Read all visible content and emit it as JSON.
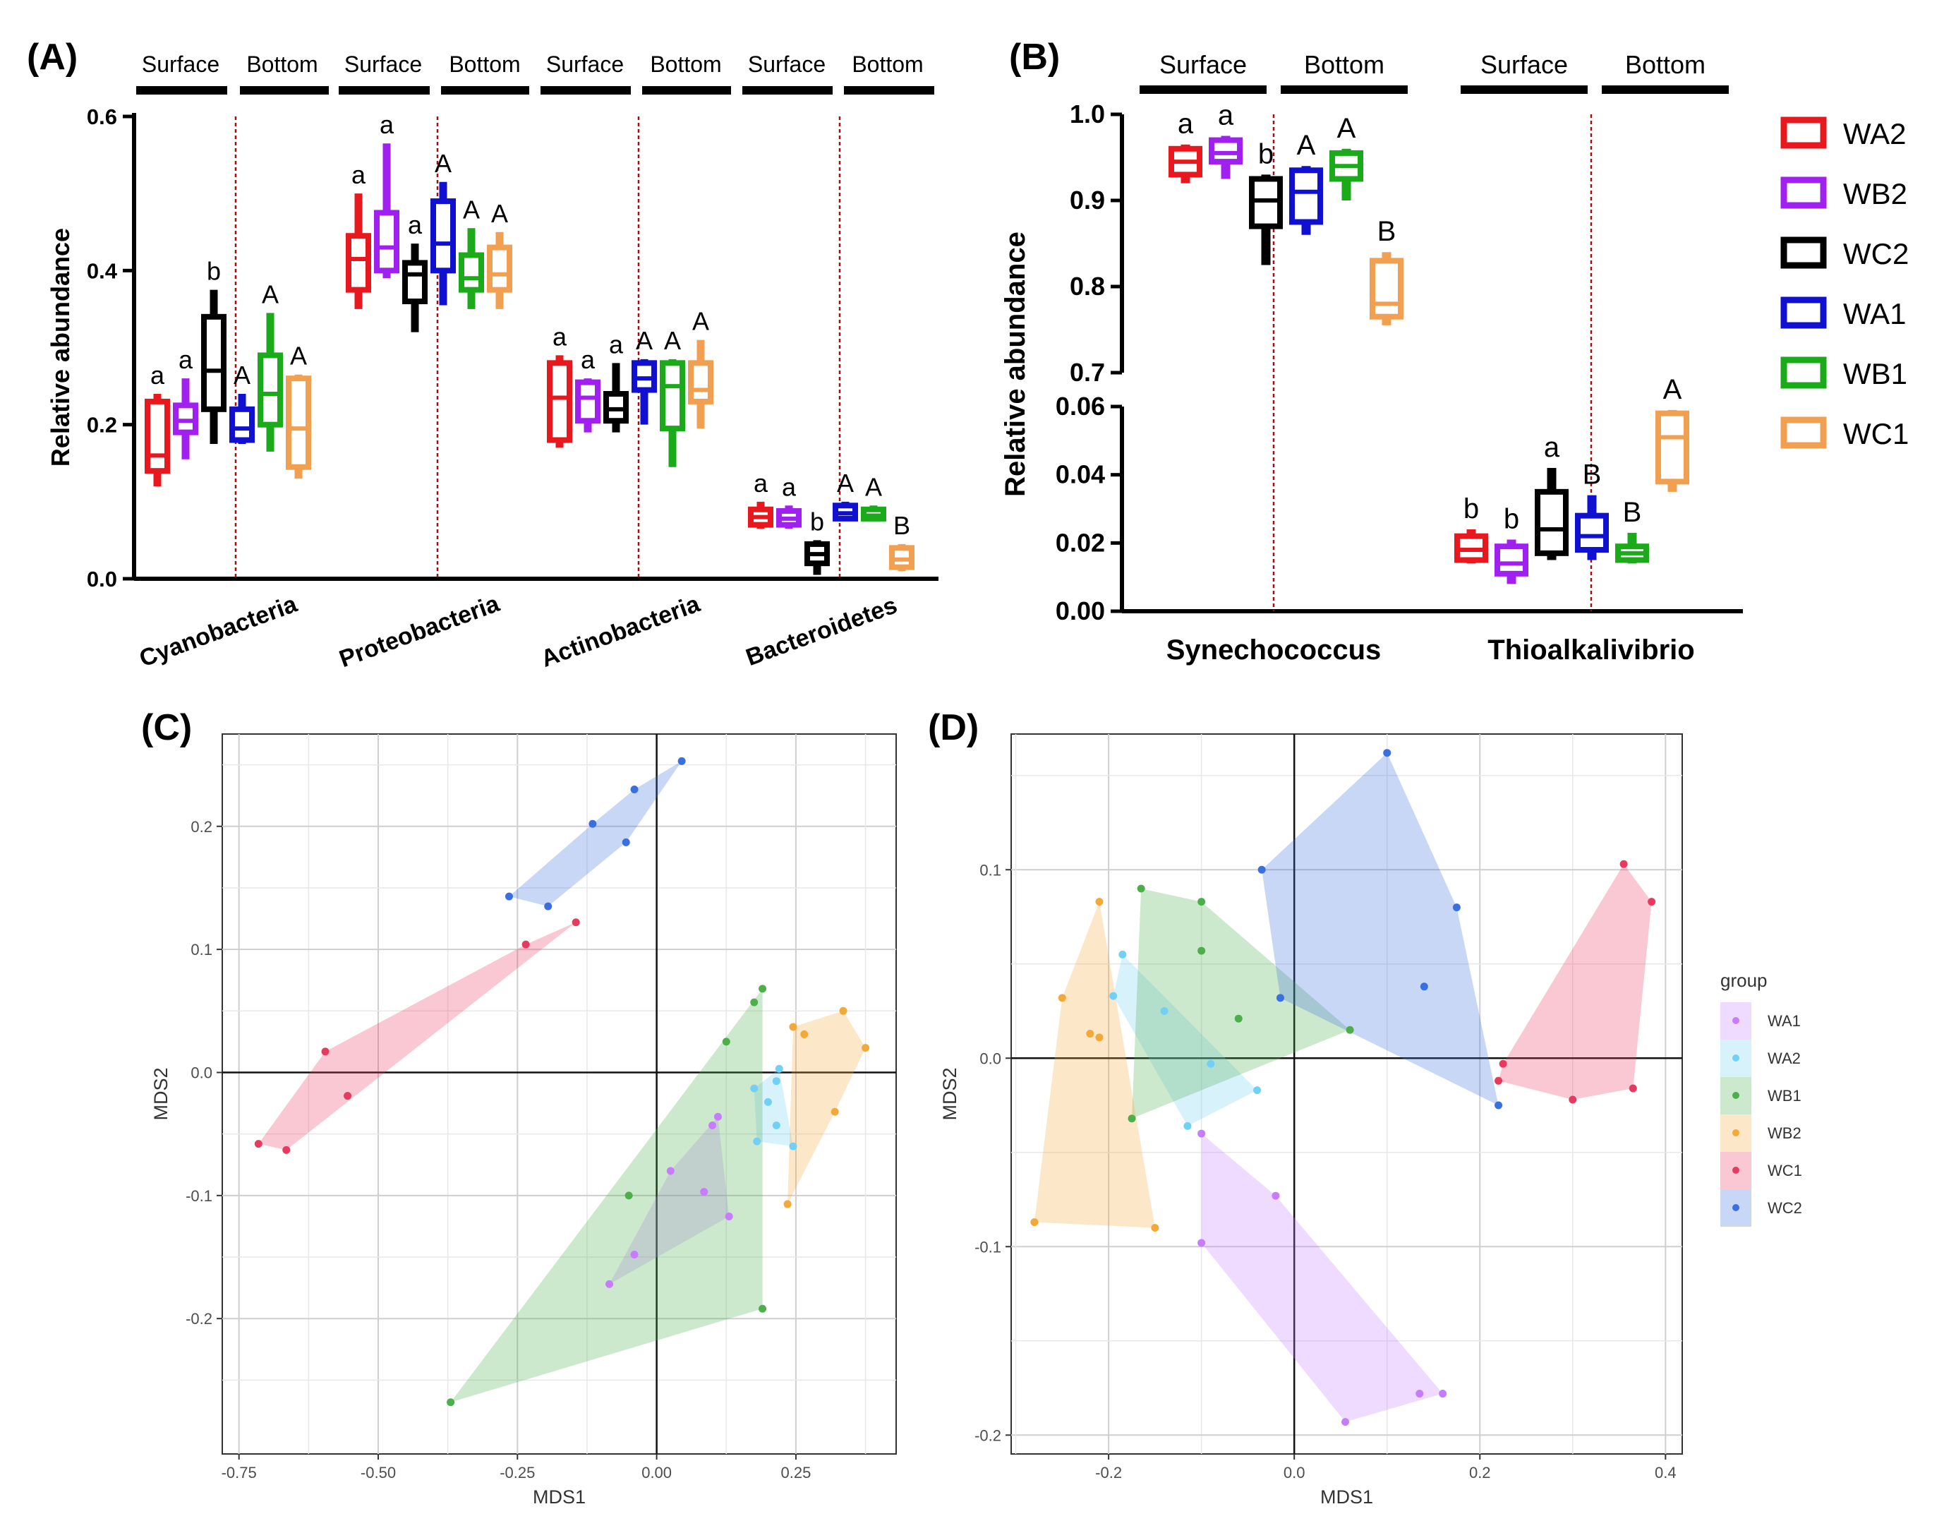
{
  "panel_labels": [
    "(A)",
    "(B)",
    "(C)",
    "(D)"
  ],
  "colors": {
    "WA2": "#e8191e",
    "WB2": "#a020f0",
    "WC2": "#000000",
    "WA1": "#1010d0",
    "WB1": "#1aaa1a",
    "WC1": "#f0a050",
    "ord_WA1": "#c77cff",
    "ord_WA2": "#72d0f6",
    "ord_WB1": "#4daf4a",
    "ord_WB2": "#f3a93a",
    "ord_WC1": "#e8395f",
    "ord_WC2": "#3a6fe0"
  },
  "chart_data": [
    {
      "id": "A",
      "type": "box",
      "title": "(A)",
      "ylabel": "Relative abundance",
      "ylim": [
        0,
        0.6
      ],
      "yticks": [
        "0.0",
        "0.2",
        "0.4",
        "0.6"
      ],
      "series_order": [
        "WA2",
        "WB2",
        "WC2",
        "WA1",
        "WB1",
        "WC1"
      ],
      "group_headers": [
        "Surface",
        "Bottom",
        "Surface",
        "Bottom",
        "Surface",
        "Bottom",
        "Surface",
        "Bottom"
      ],
      "categories": [
        {
          "name": "Cyanobacteria",
          "boxes": [
            {
              "s": "WA2",
              "min": 0.12,
              "q1": 0.14,
              "med": 0.16,
              "q3": 0.23,
              "max": 0.24,
              "label": "a"
            },
            {
              "s": "WB2",
              "min": 0.155,
              "q1": 0.19,
              "med": 0.205,
              "q3": 0.225,
              "max": 0.26,
              "label": "a"
            },
            {
              "s": "WC2",
              "min": 0.175,
              "q1": 0.22,
              "med": 0.27,
              "q3": 0.34,
              "max": 0.375,
              "label": "b"
            },
            {
              "s": "WA1",
              "min": 0.175,
              "q1": 0.18,
              "med": 0.195,
              "q3": 0.22,
              "max": 0.24,
              "label": "A"
            },
            {
              "s": "WB1",
              "min": 0.165,
              "q1": 0.2,
              "med": 0.24,
              "q3": 0.29,
              "max": 0.345,
              "label": "A"
            },
            {
              "s": "WC1",
              "min": 0.13,
              "q1": 0.145,
              "med": 0.195,
              "q3": 0.26,
              "max": 0.265,
              "label": "A"
            }
          ]
        },
        {
          "name": "Proteobacteria",
          "boxes": [
            {
              "s": "WA2",
              "min": 0.35,
              "q1": 0.375,
              "med": 0.415,
              "q3": 0.445,
              "max": 0.5,
              "label": "a"
            },
            {
              "s": "WB2",
              "min": 0.39,
              "q1": 0.4,
              "med": 0.43,
              "q3": 0.475,
              "max": 0.565,
              "label": "a"
            },
            {
              "s": "WC2",
              "min": 0.32,
              "q1": 0.36,
              "med": 0.395,
              "q3": 0.41,
              "max": 0.435,
              "label": "a"
            },
            {
              "s": "WA1",
              "min": 0.355,
              "q1": 0.4,
              "med": 0.435,
              "q3": 0.49,
              "max": 0.515,
              "label": "A"
            },
            {
              "s": "WB1",
              "min": 0.35,
              "q1": 0.375,
              "med": 0.39,
              "q3": 0.42,
              "max": 0.455,
              "label": "A"
            },
            {
              "s": "WC1",
              "min": 0.35,
              "q1": 0.375,
              "med": 0.395,
              "q3": 0.43,
              "max": 0.45,
              "label": "A"
            }
          ]
        },
        {
          "name": "Actinobacteria",
          "boxes": [
            {
              "s": "WA2",
              "min": 0.17,
              "q1": 0.18,
              "med": 0.235,
              "q3": 0.28,
              "max": 0.29,
              "label": "a"
            },
            {
              "s": "WB2",
              "min": 0.19,
              "q1": 0.205,
              "med": 0.235,
              "q3": 0.255,
              "max": 0.26,
              "label": "a"
            },
            {
              "s": "WC2",
              "min": 0.19,
              "q1": 0.205,
              "med": 0.22,
              "q3": 0.24,
              "max": 0.28,
              "label": "a"
            },
            {
              "s": "WA1",
              "min": 0.2,
              "q1": 0.245,
              "med": 0.26,
              "q3": 0.28,
              "max": 0.285,
              "label": "A"
            },
            {
              "s": "WB1",
              "min": 0.145,
              "q1": 0.195,
              "med": 0.25,
              "q3": 0.28,
              "max": 0.285,
              "label": "A"
            },
            {
              "s": "WC1",
              "min": 0.195,
              "q1": 0.23,
              "med": 0.245,
              "q3": 0.28,
              "max": 0.31,
              "label": "A"
            }
          ]
        },
        {
          "name": "Bacteroidetes",
          "boxes": [
            {
              "s": "WA2",
              "min": 0.065,
              "q1": 0.07,
              "med": 0.08,
              "q3": 0.09,
              "max": 0.1,
              "label": "a"
            },
            {
              "s": "WB2",
              "min": 0.065,
              "q1": 0.07,
              "med": 0.078,
              "q3": 0.088,
              "max": 0.095,
              "label": "a"
            },
            {
              "s": "WC2",
              "min": 0.005,
              "q1": 0.02,
              "med": 0.032,
              "q3": 0.045,
              "max": 0.05,
              "label": "b"
            },
            {
              "s": "WA1",
              "min": 0.075,
              "q1": 0.078,
              "med": 0.085,
              "q3": 0.095,
              "max": 0.1,
              "label": "A"
            },
            {
              "s": "WB1",
              "min": 0.075,
              "q1": 0.078,
              "med": 0.082,
              "q3": 0.09,
              "max": 0.095,
              "label": "A"
            },
            {
              "s": "WC1",
              "min": 0.01,
              "q1": 0.015,
              "med": 0.025,
              "q3": 0.04,
              "max": 0.045,
              "label": "B"
            }
          ]
        }
      ]
    },
    {
      "id": "B",
      "type": "box",
      "title": "(B)",
      "ylabel": "Relative abundance",
      "upper_ylim": [
        0.7,
        1.0
      ],
      "upper_yticks": [
        "0.7",
        "0.8",
        "0.9",
        "1.0"
      ],
      "lower_ylim": [
        0,
        0.06
      ],
      "lower_yticks": [
        "0.00",
        "0.02",
        "0.04",
        "0.06"
      ],
      "legend": [
        "WA2",
        "WB2",
        "WC2",
        "WA1",
        "WB1",
        "WC1"
      ],
      "group_headers": [
        "Surface",
        "Bottom",
        "Surface",
        "Bottom"
      ],
      "categories": [
        {
          "name": "Synechococcus",
          "boxes": [
            {
              "s": "WA2",
              "min": 0.92,
              "q1": 0.93,
              "med": 0.945,
              "q3": 0.96,
              "max": 0.965,
              "label": "a"
            },
            {
              "s": "WB2",
              "min": 0.925,
              "q1": 0.945,
              "med": 0.955,
              "q3": 0.97,
              "max": 0.975,
              "label": "a"
            },
            {
              "s": "WC2",
              "min": 0.825,
              "q1": 0.87,
              "med": 0.9,
              "q3": 0.925,
              "max": 0.93,
              "label": "b"
            },
            {
              "s": "WA1",
              "min": 0.86,
              "q1": 0.875,
              "med": 0.91,
              "q3": 0.935,
              "max": 0.94,
              "label": "A"
            },
            {
              "s": "WB1",
              "min": 0.9,
              "q1": 0.925,
              "med": 0.94,
              "q3": 0.955,
              "max": 0.96,
              "label": "A"
            },
            {
              "s": "WC1",
              "min": 0.755,
              "q1": 0.765,
              "med": 0.78,
              "q3": 0.83,
              "max": 0.84,
              "label": "B"
            }
          ]
        },
        {
          "name": "Thioalkalivibrio",
          "boxes": [
            {
              "s": "WA2",
              "min": 0.014,
              "q1": 0.015,
              "med": 0.018,
              "q3": 0.022,
              "max": 0.024,
              "label": "b"
            },
            {
              "s": "WB2",
              "min": 0.008,
              "q1": 0.011,
              "med": 0.014,
              "q3": 0.019,
              "max": 0.021,
              "label": "b"
            },
            {
              "s": "WC2",
              "min": 0.015,
              "q1": 0.017,
              "med": 0.024,
              "q3": 0.035,
              "max": 0.042,
              "label": "a"
            },
            {
              "s": "WA1",
              "min": 0.015,
              "q1": 0.018,
              "med": 0.022,
              "q3": 0.028,
              "max": 0.034,
              "label": "B"
            },
            {
              "s": "WB1",
              "min": 0.014,
              "q1": 0.015,
              "med": 0.017,
              "q3": 0.019,
              "max": 0.023,
              "label": "B"
            },
            {
              "s": "WC1",
              "min": 0.035,
              "q1": 0.038,
              "med": 0.051,
              "q3": 0.058,
              "max": 0.059,
              "label": "A"
            }
          ]
        }
      ]
    },
    {
      "id": "C",
      "type": "scatter",
      "title": "(C)",
      "xlabel": "MDS1",
      "ylabel": "MDS2",
      "xlim": [
        -0.78,
        0.43
      ],
      "ylim": [
        -0.31,
        0.275
      ],
      "xticks": [
        -0.75,
        -0.5,
        -0.25,
        0.0,
        0.25
      ],
      "xtick_labels": [
        "-0.75",
        "-0.50",
        "-0.25",
        "0.00",
        "0.25"
      ],
      "yticks": [
        -0.2,
        -0.1,
        0.0,
        0.1,
        0.2
      ],
      "ytick_labels": [
        "-0.2",
        "-0.1",
        "0.0",
        "0.1",
        "0.2"
      ],
      "series": [
        {
          "name": "WA1",
          "points": [
            [
              -0.085,
              -0.172
            ],
            [
              -0.04,
              -0.148
            ],
            [
              0.025,
              -0.08
            ],
            [
              0.085,
              -0.097
            ],
            [
              0.13,
              -0.117
            ],
            [
              0.11,
              -0.036
            ],
            [
              0.1,
              -0.043
            ]
          ]
        },
        {
          "name": "WA2",
          "points": [
            [
              0.175,
              -0.013
            ],
            [
              0.2,
              -0.024
            ],
            [
              0.215,
              -0.007
            ],
            [
              0.22,
              0.003
            ],
            [
              0.215,
              -0.043
            ],
            [
              0.18,
              -0.056
            ],
            [
              0.245,
              -0.06
            ]
          ]
        },
        {
          "name": "WB1",
          "points": [
            [
              -0.37,
              -0.268
            ],
            [
              -0.05,
              -0.1
            ],
            [
              0.125,
              0.025
            ],
            [
              0.175,
              0.057
            ],
            [
              0.19,
              0.068
            ],
            [
              0.19,
              -0.192
            ]
          ]
        },
        {
          "name": "WB2",
          "points": [
            [
              0.245,
              0.037
            ],
            [
              0.265,
              0.031
            ],
            [
              0.335,
              0.05
            ],
            [
              0.375,
              0.02
            ],
            [
              0.32,
              -0.032
            ],
            [
              0.235,
              -0.107
            ]
          ]
        },
        {
          "name": "WC1",
          "points": [
            [
              -0.715,
              -0.058
            ],
            [
              -0.665,
              -0.063
            ],
            [
              -0.595,
              0.017
            ],
            [
              -0.555,
              -0.019
            ],
            [
              -0.235,
              0.104
            ],
            [
              -0.145,
              0.122
            ]
          ]
        },
        {
          "name": "WC2",
          "points": [
            [
              -0.265,
              0.143
            ],
            [
              -0.195,
              0.135
            ],
            [
              -0.115,
              0.202
            ],
            [
              -0.055,
              0.187
            ],
            [
              -0.04,
              0.23
            ],
            [
              0.045,
              0.253
            ]
          ]
        }
      ]
    },
    {
      "id": "D",
      "type": "scatter",
      "title": "(D)",
      "xlabel": "MDS1",
      "ylabel": "MDS2",
      "xlim": [
        -0.305,
        0.418
      ],
      "ylim": [
        -0.21,
        0.172
      ],
      "xticks": [
        -0.2,
        0.0,
        0.2,
        0.4
      ],
      "xtick_labels": [
        "-0.2",
        "0.0",
        "0.2",
        "0.4"
      ],
      "yticks": [
        -0.2,
        -0.1,
        0.0,
        0.1
      ],
      "ytick_labels": [
        "-0.2",
        "-0.1",
        "0.0",
        "0.1"
      ],
      "legend_title": "group",
      "legend": [
        "WA1",
        "WA2",
        "WB1",
        "WB2",
        "WC1",
        "WC2"
      ],
      "series": [
        {
          "name": "WA1",
          "points": [
            [
              -0.1,
              -0.04
            ],
            [
              -0.1,
              -0.098
            ],
            [
              -0.02,
              -0.073
            ],
            [
              0.055,
              -0.193
            ],
            [
              0.135,
              -0.178
            ],
            [
              0.16,
              -0.178
            ]
          ]
        },
        {
          "name": "WA2",
          "points": [
            [
              -0.185,
              0.055
            ],
            [
              -0.195,
              0.033
            ],
            [
              -0.14,
              0.025
            ],
            [
              -0.115,
              -0.036
            ],
            [
              -0.04,
              -0.017
            ],
            [
              -0.09,
              -0.003
            ]
          ]
        },
        {
          "name": "WB1",
          "points": [
            [
              -0.165,
              0.09
            ],
            [
              -0.1,
              0.083
            ],
            [
              -0.1,
              0.057
            ],
            [
              -0.06,
              0.021
            ],
            [
              0.06,
              0.015
            ],
            [
              -0.175,
              -0.032
            ]
          ]
        },
        {
          "name": "WB2",
          "points": [
            [
              -0.21,
              0.083
            ],
            [
              -0.25,
              0.032
            ],
            [
              -0.22,
              0.013
            ],
            [
              -0.21,
              0.011
            ],
            [
              -0.28,
              -0.087
            ],
            [
              -0.15,
              -0.09
            ]
          ]
        },
        {
          "name": "WC1",
          "points": [
            [
              0.355,
              0.103
            ],
            [
              0.385,
              0.083
            ],
            [
              0.225,
              -0.003
            ],
            [
              0.22,
              -0.012
            ],
            [
              0.3,
              -0.022
            ],
            [
              0.365,
              -0.016
            ]
          ]
        },
        {
          "name": "WC2",
          "points": [
            [
              -0.035,
              0.1
            ],
            [
              0.1,
              0.162
            ],
            [
              0.175,
              0.08
            ],
            [
              0.14,
              0.038
            ],
            [
              -0.015,
              0.032
            ],
            [
              0.22,
              -0.025
            ]
          ]
        }
      ]
    }
  ]
}
